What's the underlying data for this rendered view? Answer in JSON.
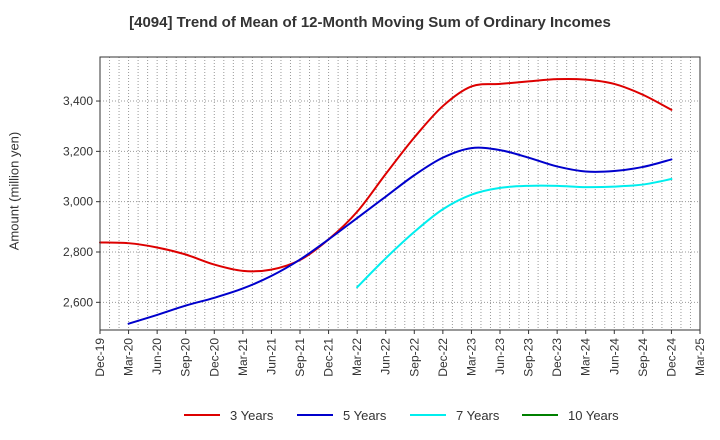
{
  "chart_data": {
    "type": "line",
    "title": "[4094]  Trend of Mean of 12-Month Moving Sum of Ordinary Incomes",
    "xlabel": "",
    "ylabel": "Amount (million yen)",
    "ylim": [
      2490,
      3575
    ],
    "yticks": [
      2600,
      2800,
      3000,
      3200,
      3400
    ],
    "ytick_labels": [
      "2,600",
      "2,800",
      "3,000",
      "3,200",
      "3,400"
    ],
    "grid": true,
    "legend_position": "bottom",
    "x": [
      "Dec-19",
      "Mar-20",
      "Jun-20",
      "Sep-20",
      "Dec-20",
      "Mar-21",
      "Jun-21",
      "Sep-21",
      "Dec-21",
      "Mar-22",
      "Jun-22",
      "Sep-22",
      "Dec-22",
      "Mar-23",
      "Jun-23",
      "Sep-23",
      "Dec-23",
      "Mar-24",
      "Jun-24",
      "Sep-24",
      "Dec-24",
      "Mar-25"
    ],
    "series": [
      {
        "name": "3 Years",
        "color": "#dd0000",
        "values": [
          2838,
          2835,
          2818,
          2790,
          2750,
          2725,
          2730,
          2768,
          2850,
          2960,
          3110,
          3255,
          3380,
          3458,
          3468,
          3478,
          3487,
          3485,
          3468,
          3425,
          3365,
          null
        ]
      },
      {
        "name": "5 Years",
        "color": "#0000cc",
        "values": [
          null,
          2515,
          2550,
          2587,
          2618,
          2655,
          2705,
          2770,
          2850,
          2935,
          3020,
          3105,
          3175,
          3213,
          3205,
          3175,
          3140,
          3120,
          3122,
          3138,
          3168,
          null
        ]
      },
      {
        "name": "7 Years",
        "color": "#00eeee",
        "values": [
          null,
          null,
          null,
          null,
          null,
          null,
          null,
          null,
          null,
          2660,
          2775,
          2880,
          2970,
          3028,
          3055,
          3063,
          3063,
          3058,
          3060,
          3068,
          3090,
          null
        ]
      },
      {
        "name": "10 Years",
        "color": "#008000",
        "values": [
          null,
          null,
          null,
          null,
          null,
          null,
          null,
          null,
          null,
          null,
          null,
          null,
          null,
          null,
          null,
          null,
          null,
          null,
          null,
          null,
          null,
          null
        ]
      }
    ]
  }
}
